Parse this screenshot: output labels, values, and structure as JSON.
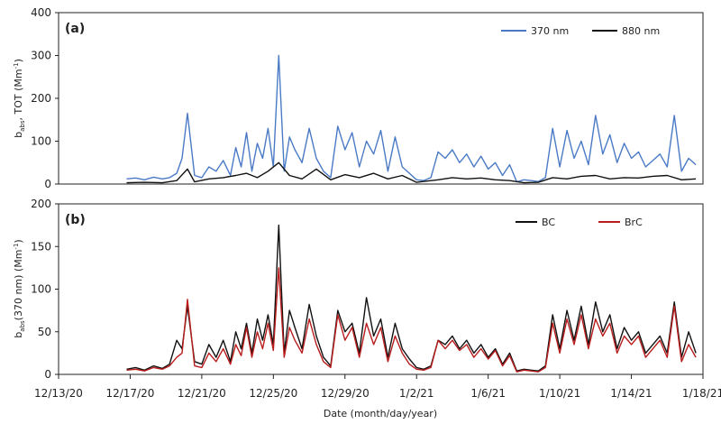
{
  "figure": {
    "xlabel": "Date (month/day/year)",
    "x_ticks": [
      "12/13/20",
      "12/17/20",
      "12/21/20",
      "12/25/20",
      "12/29/20",
      "1/2/21",
      "1/6/21",
      "1/10/21",
      "1/14/21",
      "1/18/21"
    ]
  },
  "chart_data": [
    {
      "type": "line",
      "panel": "(a)",
      "ylabel_main": "b",
      "ylabel_sub": "abs",
      "ylabel_rest": ", TOT (Mm",
      "ylabel_sup": "-1",
      "ylabel_end": ")",
      "ylim": [
        0,
        400
      ],
      "y_ticks": [
        "0",
        "100",
        "200",
        "300",
        "400"
      ],
      "xlim": [
        0,
        36
      ],
      "x_start": "12/13/20",
      "x_unit": "days",
      "legend_position": "top-right",
      "series": [
        {
          "name": "370 nm",
          "color": "#4a7ac6",
          "x": [
            3.8,
            4.3,
            4.8,
            5.3,
            5.8,
            6.2,
            6.6,
            6.9,
            7.2,
            7.6,
            8.0,
            8.4,
            8.8,
            9.2,
            9.6,
            9.9,
            10.2,
            10.5,
            10.8,
            11.1,
            11.4,
            11.7,
            12.0,
            12.3,
            12.6,
            12.9,
            13.2,
            13.6,
            14.0,
            14.4,
            14.8,
            15.2,
            15.6,
            16.0,
            16.4,
            16.8,
            17.2,
            17.6,
            18.0,
            18.4,
            18.8,
            19.2,
            19.6,
            20.0,
            20.4,
            20.8,
            21.2,
            21.6,
            22.0,
            22.4,
            22.8,
            23.2,
            23.6,
            24.0,
            24.4,
            24.8,
            25.2,
            25.6,
            26.0,
            26.4,
            26.8,
            27.2,
            27.6,
            28.0,
            28.4,
            28.8,
            29.2,
            29.6,
            30.0,
            30.4,
            30.8,
            31.2,
            31.6,
            32.0,
            32.4,
            32.8,
            33.2,
            33.6,
            34.0,
            34.4,
            34.8,
            35.2,
            35.6
          ],
          "values": [
            12,
            14,
            10,
            16,
            12,
            15,
            25,
            60,
            165,
            20,
            15,
            40,
            30,
            55,
            20,
            85,
            40,
            120,
            30,
            95,
            60,
            130,
            40,
            300,
            30,
            110,
            80,
            50,
            130,
            60,
            30,
            15,
            135,
            80,
            120,
            40,
            100,
            70,
            125,
            30,
            110,
            40,
            25,
            10,
            8,
            15,
            75,
            60,
            80,
            50,
            70,
            40,
            65,
            35,
            50,
            20,
            45,
            5,
            10,
            8,
            6,
            15,
            130,
            40,
            125,
            60,
            100,
            45,
            160,
            70,
            115,
            50,
            95,
            60,
            75,
            40,
            55,
            70,
            40,
            160,
            30,
            60,
            45
          ]
        },
        {
          "name": "880 nm",
          "color": "#111111",
          "x": [
            3.8,
            4.8,
            5.8,
            6.6,
            7.2,
            7.6,
            8.4,
            9.2,
            9.9,
            10.5,
            11.1,
            11.7,
            12.3,
            12.9,
            13.6,
            14.4,
            15.2,
            16.0,
            16.8,
            17.6,
            18.4,
            19.2,
            20.0,
            21.2,
            22.0,
            22.8,
            23.6,
            24.4,
            25.2,
            26.0,
            26.8,
            27.6,
            28.4,
            29.2,
            30.0,
            30.8,
            31.6,
            32.4,
            33.2,
            34.0,
            34.8,
            35.6
          ],
          "values": [
            3,
            4,
            3,
            8,
            35,
            5,
            12,
            15,
            20,
            25,
            15,
            30,
            50,
            20,
            12,
            35,
            10,
            22,
            15,
            25,
            12,
            20,
            4,
            10,
            15,
            12,
            14,
            10,
            8,
            3,
            4,
            15,
            12,
            18,
            20,
            12,
            15,
            14,
            18,
            20,
            10,
            12
          ]
        }
      ]
    },
    {
      "type": "line",
      "panel": "(b)",
      "ylabel_main": "b",
      "ylabel_sub": "abs",
      "ylabel_rest": "(370 nm) (Mm",
      "ylabel_sup": "-1",
      "ylabel_end": ")",
      "ylim": [
        0,
        200
      ],
      "y_ticks": [
        "0",
        "50",
        "100",
        "150",
        "200"
      ],
      "xlim": [
        0,
        36
      ],
      "x_start": "12/13/20",
      "x_unit": "days",
      "legend_position": "top-right",
      "series": [
        {
          "name": "BC",
          "color": "#111111",
          "x": [
            3.8,
            4.3,
            4.8,
            5.3,
            5.8,
            6.2,
            6.6,
            6.9,
            7.2,
            7.6,
            8.0,
            8.4,
            8.8,
            9.2,
            9.6,
            9.9,
            10.2,
            10.5,
            10.8,
            11.1,
            11.4,
            11.7,
            12.0,
            12.3,
            12.6,
            12.9,
            13.2,
            13.6,
            14.0,
            14.4,
            14.8,
            15.2,
            15.6,
            16.0,
            16.4,
            16.8,
            17.2,
            17.6,
            18.0,
            18.4,
            18.8,
            19.2,
            19.6,
            20.0,
            20.4,
            20.8,
            21.2,
            21.6,
            22.0,
            22.4,
            22.8,
            23.2,
            23.6,
            24.0,
            24.4,
            24.8,
            25.2,
            25.6,
            26.0,
            26.4,
            26.8,
            27.2,
            27.6,
            28.0,
            28.4,
            28.8,
            29.2,
            29.6,
            30.0,
            30.4,
            30.8,
            31.2,
            31.6,
            32.0,
            32.4,
            32.8,
            33.2,
            33.6,
            34.0,
            34.4,
            34.8,
            35.2,
            35.6
          ],
          "values": [
            6,
            8,
            5,
            10,
            7,
            12,
            40,
            30,
            80,
            15,
            12,
            35,
            20,
            40,
            15,
            50,
            30,
            60,
            25,
            65,
            40,
            70,
            35,
            175,
            25,
            75,
            55,
            30,
            82,
            45,
            20,
            10,
            75,
            50,
            60,
            25,
            90,
            45,
            65,
            20,
            60,
            30,
            18,
            8,
            6,
            10,
            40,
            35,
            45,
            30,
            40,
            25,
            35,
            20,
            30,
            12,
            25,
            4,
            6,
            5,
            4,
            10,
            70,
            30,
            75,
            40,
            80,
            35,
            85,
            50,
            70,
            30,
            55,
            40,
            50,
            25,
            35,
            45,
            25,
            85,
            20,
            50,
            25
          ]
        },
        {
          "name": "BrC",
          "color": "#b81c1c",
          "x": [
            3.8,
            4.3,
            4.8,
            5.3,
            5.8,
            6.2,
            6.6,
            6.9,
            7.2,
            7.6,
            8.0,
            8.4,
            8.8,
            9.2,
            9.6,
            9.9,
            10.2,
            10.5,
            10.8,
            11.1,
            11.4,
            11.7,
            12.0,
            12.3,
            12.6,
            12.9,
            13.2,
            13.6,
            14.0,
            14.4,
            14.8,
            15.2,
            15.6,
            16.0,
            16.4,
            16.8,
            17.2,
            17.6,
            18.0,
            18.4,
            18.8,
            19.2,
            19.6,
            20.0,
            20.4,
            20.8,
            21.2,
            21.6,
            22.0,
            22.4,
            22.8,
            23.2,
            23.6,
            24.0,
            24.4,
            24.8,
            25.2,
            25.6,
            26.0,
            26.4,
            26.8,
            27.2,
            27.6,
            28.0,
            28.4,
            28.8,
            29.2,
            29.6,
            30.0,
            30.4,
            30.8,
            31.2,
            31.6,
            32.0,
            32.4,
            32.8,
            33.2,
            33.6,
            34.0,
            34.4,
            34.8,
            35.2,
            35.6
          ],
          "values": [
            5,
            6,
            4,
            8,
            6,
            10,
            20,
            25,
            88,
            10,
            8,
            25,
            15,
            30,
            12,
            35,
            22,
            55,
            20,
            50,
            30,
            60,
            28,
            125,
            20,
            55,
            40,
            25,
            65,
            35,
            15,
            8,
            70,
            40,
            55,
            20,
            60,
            35,
            55,
            15,
            45,
            25,
            12,
            6,
            5,
            8,
            40,
            30,
            40,
            28,
            35,
            20,
            30,
            18,
            28,
            10,
            22,
            3,
            5,
            4,
            3,
            8,
            60,
            25,
            65,
            35,
            70,
            30,
            65,
            45,
            60,
            25,
            45,
            35,
            45,
            20,
            30,
            40,
            20,
            80,
            15,
            35,
            20
          ]
        }
      ]
    }
  ]
}
